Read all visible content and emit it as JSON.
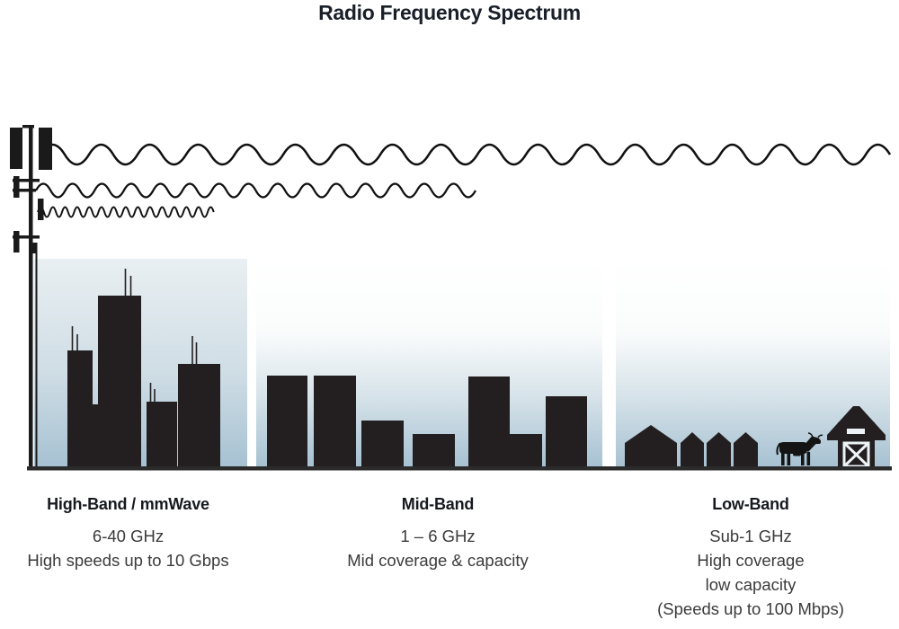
{
  "title": "Radio Frequency Spectrum",
  "bands": {
    "high": {
      "name": "High-Band / mmWave",
      "lines": [
        "6-40 GHz",
        "High speeds up to 10 Gbps"
      ]
    },
    "mid": {
      "name": "Mid-Band",
      "lines": [
        "1 – 6 GHz",
        "Mid coverage & capacity"
      ]
    },
    "low": {
      "name": "Low-Band",
      "lines": [
        "Sub-1 GHz",
        "High coverage",
        "low capacity",
        "(Speeds up to 100 Mbps)"
      ]
    }
  },
  "icons": {
    "tower": "cell-tower-icon",
    "wave_long": "low-band-long-wavelength-wave",
    "wave_medium": "mid-band-medium-wavelength-wave",
    "wave_short": "high-band-short-wavelength-wave",
    "high_scene": "city-skyline-icon",
    "mid_scene": "mid-rise-buildings-icon",
    "low_scene": "rural-houses-icon",
    "cow": "cow-icon",
    "barn": "barn-icon",
    "ground": "ground-line"
  },
  "colors": {
    "silhouette": "#231f20",
    "wave": "#101010",
    "sky_top": "#ffffff",
    "sky_bottom": "#a6c1d2",
    "ground": "#2b2b2b",
    "heading_text": "#16191f",
    "body_text": "#3b3b3b"
  }
}
